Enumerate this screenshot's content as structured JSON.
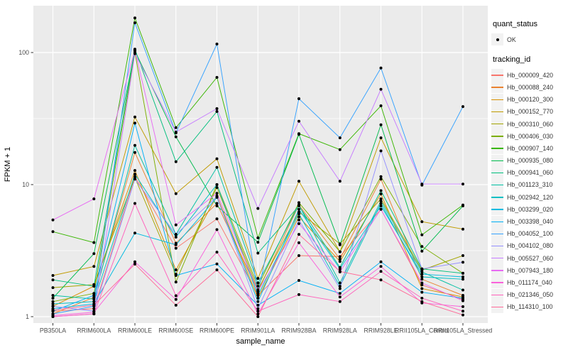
{
  "figure": {
    "background": "#FFFFFF",
    "panel_background": "#EBEBEB",
    "gridline_color": "#FFFFFF",
    "tick_color": "#333333",
    "tick_label_color": "#4D4D4D",
    "axis_title_color": "#000000",
    "point_color": "#000000",
    "legend_key_background": "#F2F2F2"
  },
  "legend": {
    "quant_title": "quant_status",
    "quant_items": [
      {
        "label": "OK",
        "symbol": "point"
      }
    ],
    "tracking_title": "tracking_id"
  },
  "chart_data": {
    "type": "line",
    "title": "",
    "xlabel": "sample_name",
    "ylabel": "FPKM + 1",
    "y_scale": "log10",
    "ylim": [
      1,
      226
    ],
    "y_major_ticks": [
      1,
      10,
      100
    ],
    "y_minor_ticks": [
      3.162,
      31.62
    ],
    "grid": true,
    "legend_position": "right",
    "categories": [
      "PB350LA",
      "RRIM600LA",
      "RRIM600LE",
      "RRIM600SE",
      "RRIM600PE",
      "RRIM901LA",
      "RRIM928BA",
      "RRIM928LA",
      "RRIM928LE",
      "RRII105LA_Control",
      "RRII105LA_Stressed"
    ],
    "series": [
      {
        "name": "Hb_000009_420",
        "color": "#F8766D",
        "values": [
          1.1,
          1.15,
          11.5,
          3.3,
          5.5,
          1.45,
          2.9,
          2.85,
          6.5,
          1.74,
          1.35
        ]
      },
      {
        "name": "Hb_000088_240",
        "color": "#EA8331",
        "values": [
          1.05,
          1.4,
          17.5,
          3.6,
          7.2,
          1.56,
          7.0,
          2.73,
          11.0,
          1.92,
          1.45
        ]
      },
      {
        "name": "Hb_000120_300",
        "color": "#D89000",
        "values": [
          1.2,
          1.7,
          12.8,
          2.26,
          8.2,
          1.38,
          5.7,
          2.62,
          8.5,
          1.63,
          1.41
        ]
      },
      {
        "name": "Hb_000152_770",
        "color": "#C09B00",
        "values": [
          2.05,
          2.4,
          32.5,
          8.55,
          15.7,
          1.95,
          10.6,
          3.1,
          22.6,
          5.24,
          4.6
        ]
      },
      {
        "name": "Hb_000310_060",
        "color": "#A3A500",
        "values": [
          1.66,
          1.75,
          11.3,
          2.1,
          9.5,
          1.6,
          6.2,
          3.56,
          7.8,
          2.25,
          2.9
        ]
      },
      {
        "name": "Hb_000406_030",
        "color": "#7CAE00",
        "values": [
          1.3,
          1.5,
          100,
          1.83,
          10.0,
          1.7,
          7.3,
          3.1,
          11.5,
          3.4,
          2.13
        ]
      },
      {
        "name": "Hb_000907_140",
        "color": "#39B600",
        "values": [
          4.4,
          3.64,
          183,
          27.0,
          64.8,
          3.95,
          24.3,
          18.4,
          39.5,
          4.17,
          7.0
        ]
      },
      {
        "name": "Hb_000935_080",
        "color": "#00BB4E",
        "values": [
          1.38,
          3.0,
          103,
          23.0,
          6.9,
          3.66,
          24.0,
          3.5,
          28.4,
          3.13,
          6.9
        ]
      },
      {
        "name": "Hb_000941_060",
        "color": "#00BF7D",
        "values": [
          1.9,
          1.7,
          106,
          14.9,
          35.8,
          3.03,
          6.9,
          2.36,
          9.0,
          2.3,
          2.13
        ]
      },
      {
        "name": "Hb_001123_310",
        "color": "#00C1A3",
        "values": [
          1.45,
          1.36,
          19.8,
          4.2,
          13.5,
          1.8,
          7.0,
          1.8,
          7.5,
          2.18,
          1.59
        ]
      },
      {
        "name": "Hb_002942_120",
        "color": "#00BFC4",
        "values": [
          1.25,
          1.3,
          12.0,
          4.0,
          10.0,
          1.45,
          6.0,
          1.7,
          7.2,
          2.0,
          1.92
        ]
      },
      {
        "name": "Hb_003299_020",
        "color": "#00BAE0",
        "values": [
          1.15,
          1.25,
          4.3,
          3.5,
          8.0,
          1.3,
          6.5,
          2.3,
          6.9,
          2.1,
          2.0
        ]
      },
      {
        "name": "Hb_003398_040",
        "color": "#00B0F6",
        "values": [
          1.1,
          1.45,
          29.2,
          2.05,
          2.51,
          1.22,
          1.88,
          1.5,
          2.6,
          1.53,
          1.38
        ]
      },
      {
        "name": "Hb_004052_100",
        "color": "#35A2FF",
        "values": [
          1.05,
          1.2,
          168,
          24.6,
          116,
          1.5,
          44.7,
          22.6,
          76.4,
          9.9,
          39.0
        ]
      },
      {
        "name": "Hb_004102_080",
        "color": "#9590FF",
        "values": [
          1.2,
          1.1,
          11.0,
          4.2,
          8.1,
          1.15,
          5.4,
          1.63,
          18.0,
          2.3,
          2.58
        ]
      },
      {
        "name": "Hb_005527_060",
        "color": "#C77CFF",
        "values": [
          1.0,
          1.05,
          98.0,
          25.0,
          37.6,
          6.6,
          30.2,
          10.6,
          52.7,
          10.1,
          10.1
        ]
      },
      {
        "name": "Hb_007943_180",
        "color": "#E76BF3",
        "values": [
          5.4,
          7.8,
          104,
          4.95,
          8.6,
          1.56,
          5.06,
          2.18,
          6.5,
          1.8,
          1.32
        ]
      },
      {
        "name": "Hb_011174_040",
        "color": "#FA62DB",
        "values": [
          1.02,
          1.08,
          2.6,
          1.35,
          4.56,
          1.05,
          3.63,
          1.41,
          2.4,
          1.27,
          1.19
        ]
      },
      {
        "name": "Hb_021346_050",
        "color": "#FF62BC",
        "values": [
          1.0,
          1.05,
          7.2,
          1.44,
          3.08,
          1.1,
          1.47,
          1.3,
          2.2,
          1.38,
          1.1
        ]
      },
      {
        "name": "Hb_114310_100",
        "color": "#FF6A98",
        "values": [
          1.12,
          1.22,
          2.5,
          1.22,
          2.26,
          1.0,
          4.2,
          2.2,
          1.9,
          1.3,
          1.03
        ]
      }
    ]
  }
}
